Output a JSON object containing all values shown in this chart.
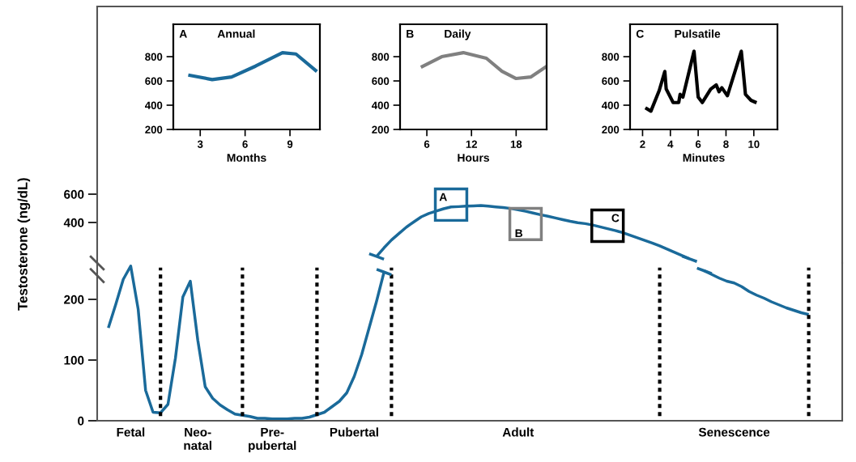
{
  "chart_data": [
    {
      "type": "line",
      "title": "Annual",
      "xlabel": "Months",
      "annotations": [
        "A"
      ],
      "series": [
        {
          "color": "#1a6a9a",
          "x": [
            2.2,
            3.8,
            5.1,
            6.7,
            8.5,
            9.4,
            10.8
          ],
          "values": [
            649,
            611,
            633,
            722,
            833,
            822,
            678
          ]
        }
      ],
      "xlim": [
        1.2,
        11.0
      ],
      "ylim": [
        200,
        1067
      ],
      "xticks": [
        3,
        6,
        9
      ],
      "yticks": [
        200,
        400,
        600,
        800
      ]
    },
    {
      "type": "line",
      "title": "Daily",
      "xlabel": "Hours",
      "annotations": [
        "B"
      ],
      "series": [
        {
          "color": "#808080",
          "x": [
            5.2,
            8.0,
            10.9,
            14.0,
            16.1,
            18.0,
            20.0,
            22.1
          ],
          "values": [
            713,
            800,
            833,
            787,
            680,
            620,
            633,
            720
          ]
        }
      ],
      "xlim": [
        2.4,
        22.1
      ],
      "ylim": [
        200,
        1067
      ],
      "xticks": [
        6,
        12,
        18
      ],
      "yticks": [
        200,
        400,
        600,
        800
      ]
    },
    {
      "type": "line",
      "title": "Pulsatile",
      "xlabel": "Minutes",
      "annotations": [
        "C"
      ],
      "series": [
        {
          "color": "#000000",
          "x": [
            2.2,
            2.6,
            3.2,
            3.6,
            3.7,
            4.2,
            4.6,
            4.7,
            4.9,
            5.7,
            6.0,
            6.3,
            6.9,
            7.3,
            7.5,
            7.7,
            8.1,
            9.1,
            9.4,
            9.8,
            10.2
          ],
          "values": [
            378,
            351,
            522,
            678,
            533,
            422,
            422,
            489,
            467,
            845,
            467,
            422,
            533,
            567,
            511,
            544,
            478,
            845,
            489,
            440,
            420
          ]
        }
      ],
      "xlim": [
        1.1,
        11.7
      ],
      "ylim": [
        200,
        1067
      ],
      "xticks": [
        2,
        4,
        6,
        8,
        10
      ],
      "yticks": [
        200,
        400,
        600,
        800
      ]
    },
    {
      "type": "line",
      "tick_labels": "y",
      "categories": [
        null,
        null,
        null,
        null,
        null,
        null,
        null,
        null,
        null,
        null,
        null,
        null,
        null,
        null,
        null,
        null,
        null,
        null,
        null,
        null,
        null,
        null,
        null,
        null,
        null,
        null,
        null,
        null,
        null,
        null,
        null,
        null,
        null,
        null,
        null,
        null,
        null,
        null,
        null,
        null,
        null,
        null,
        null,
        null,
        null,
        null,
        null,
        null,
        null,
        null,
        null,
        null,
        null,
        null,
        null,
        null,
        null,
        null,
        null,
        null,
        null,
        null,
        null,
        null,
        null,
        null,
        null,
        null,
        null,
        null,
        null,
        null,
        null,
        null,
        null,
        null,
        null,
        null,
        null,
        null,
        null,
        null,
        null,
        null,
        null,
        null,
        null,
        null,
        null,
        null,
        null,
        null,
        null,
        null,
        null,
        null,
        null,
        null,
        null,
        null
      ],
      "series": [
        {
          "color": "#1a6a9a",
          "values": [
            null,
            null,
            null,
            null,
            null,
            null,
            null,
            null,
            null,
            null,
            null,
            null,
            null,
            null,
            null,
            null,
            null,
            null,
            null,
            null,
            null,
            null,
            null,
            null,
            null,
            null,
            null,
            null,
            null,
            null,
            null,
            null,
            null,
            null,
            null,
            null,
            null,
            160,
            221,
            276,
            322,
            367,
            404,
            440,
            463,
            480,
            497,
            510,
            512,
            515,
            517,
            520,
            516,
            510,
            505,
            499,
            490,
            479,
            467,
            455,
            444,
            432,
            420,
            408,
            398,
            392,
            382,
            369,
            356,
            343,
            329,
            310,
            292,
            273,
            255,
            235,
            212,
            189,
            166,
            143,
            null,
            null,
            null,
            null,
            null,
            null,
            null,
            null,
            null,
            null,
            null,
            null,
            null,
            null,
            null,
            null,
            null,
            null,
            null,
            null
          ]
        },
        {
          "type": "scatter",
          "marker": "square",
          "values": [
            null,
            null,
            null,
            null,
            null,
            null,
            null,
            null,
            null,
            null,
            null,
            null,
            null,
            null,
            null,
            null,
            null,
            null,
            null,
            null,
            null,
            null,
            null,
            null,
            null,
            null,
            null,
            null,
            null,
            null,
            null,
            null,
            null,
            null,
            null,
            null,
            null,
            null,
            null,
            null,
            null,
            null,
            null,
            null,
            null,
            null,
            null,
            526,
            null,
            null,
            null,
            null,
            null,
            null,
            null,
            null,
            null,
            389,
            null,
            null,
            null,
            null,
            null,
            null,
            null,
            null,
            null,
            null,
            377,
            null,
            null,
            null,
            null,
            null,
            null,
            null,
            null,
            null,
            null,
            null,
            null,
            null,
            null,
            null,
            null,
            null,
            null,
            null,
            null,
            null,
            null,
            null,
            null,
            null,
            null,
            null,
            null,
            null,
            null,
            null
          ],
          "colors": [
            null,
            null,
            null,
            null,
            null,
            null,
            null,
            null,
            null,
            null,
            null,
            null,
            null,
            null,
            null,
            null,
            null,
            null,
            null,
            null,
            null,
            null,
            null,
            null,
            null,
            null,
            null,
            null,
            null,
            null,
            null,
            null,
            null,
            null,
            null,
            null,
            null,
            null,
            null,
            null,
            null,
            null,
            null,
            null,
            null,
            null,
            null,
            "#1a6a9a",
            null,
            null,
            null,
            null,
            null,
            null,
            null,
            null,
            null,
            "#808080",
            null,
            null,
            null,
            null,
            null,
            null,
            null,
            null,
            null,
            null,
            "#000000",
            null,
            null,
            null,
            null,
            null,
            null,
            null,
            null,
            null,
            null,
            null,
            null,
            null,
            null,
            null,
            null,
            null,
            null,
            null,
            null,
            null,
            null,
            null,
            null,
            null,
            null,
            null,
            null,
            null,
            null,
            null
          ],
          "value_labels": [
            null,
            null,
            null,
            null,
            null,
            null,
            null,
            null,
            null,
            null,
            null,
            null,
            null,
            null,
            null,
            null,
            null,
            null,
            null,
            null,
            null,
            null,
            null,
            null,
            null,
            null,
            null,
            null,
            null,
            null,
            null,
            null,
            null,
            null,
            null,
            null,
            null,
            null,
            null,
            null,
            null,
            null,
            null,
            null,
            null,
            null,
            null,
            "A",
            null,
            null,
            null,
            null,
            null,
            null,
            null,
            null,
            null,
            "B",
            null,
            null,
            null,
            null,
            null,
            null,
            null,
            null,
            null,
            null,
            "C",
            null,
            null,
            null,
            null,
            null,
            null,
            null,
            null,
            null,
            null,
            null,
            null,
            null,
            null,
            null,
            null,
            null,
            null,
            null,
            null,
            null,
            null,
            null,
            null,
            null,
            null,
            null,
            null,
            null,
            null,
            null
          ]
        }
      ],
      "ylim": [
        114,
        1926
      ],
      "yticks": [
        400,
        600
      ]
    },
    {
      "type": "line",
      "ylabel": "Testosterone (ng/dL)",
      "categories": [
        null,
        null,
        null,
        null,
        "Fetal",
        null,
        null,
        null,
        null,
        null,
        null,
        null,
        null,
        "Neo-\nnatal",
        null,
        null,
        null,
        null,
        null,
        null,
        null,
        null,
        null,
        "Pre-\npubertal",
        null,
        null,
        null,
        null,
        null,
        null,
        null,
        null,
        null,
        null,
        "Pubertal",
        null,
        null,
        null,
        null,
        null,
        null,
        null,
        null,
        null,
        null,
        null,
        null,
        null,
        null,
        null,
        null,
        null,
        null,
        null,
        null,
        null,
        "Adult",
        null,
        null,
        null,
        null,
        null,
        null,
        null,
        null,
        null,
        null,
        null,
        null,
        null,
        null,
        null,
        null,
        null,
        null,
        null,
        null,
        null,
        null,
        null,
        null,
        null,
        null,
        null,
        null,
        "Senescence",
        null,
        null,
        null,
        null,
        null,
        null,
        null,
        null,
        null,
        null,
        null,
        null,
        null,
        null
      ],
      "series": [
        {
          "color": "#1a6a9a",
          "values": [
            null,
            153,
            192,
            233,
            255,
            184,
            50,
            14,
            13,
            27,
            103,
            204,
            230,
            133,
            56,
            37,
            26,
            18,
            11,
            9,
            7,
            4,
            4,
            3,
            3,
            3,
            4,
            4,
            6,
            10,
            14,
            23,
            32,
            46,
            73,
            109,
            153,
            197,
            245,
            null,
            null,
            null,
            null,
            null,
            null,
            null,
            null,
            null,
            null,
            null,
            null,
            null,
            null,
            null,
            null,
            null,
            null,
            null,
            null,
            null,
            null,
            null,
            null,
            null,
            null,
            null,
            null,
            null,
            null,
            null,
            null,
            null,
            null,
            null,
            null,
            null,
            null,
            null,
            null,
            null,
            null,
            247,
            241,
            235,
            230,
            227,
            221,
            213,
            207,
            202,
            196,
            191,
            186,
            182,
            178,
            175,
            null,
            null,
            null,
            null
          ]
        }
      ],
      "ylim": [
        0,
        260
      ],
      "yticks": [
        0,
        100,
        200
      ]
    }
  ]
}
